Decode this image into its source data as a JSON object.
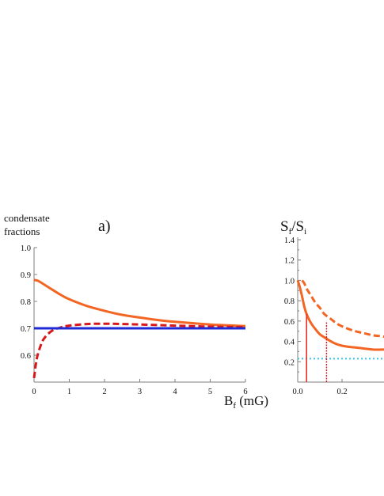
{
  "chart_data": [
    {
      "type": "line",
      "panel_label": "a)",
      "ylabel_lines": [
        "condensate",
        "fractions"
      ],
      "xlabel": {
        "main": "B",
        "sub": "f",
        "unit": " (mG)"
      },
      "xlim": [
        0,
        6
      ],
      "ylim": [
        0.5,
        1.0
      ],
      "x_ticks": [
        0,
        1,
        2,
        3,
        4,
        5,
        6
      ],
      "y_ticks": [
        0.6,
        0.7,
        0.8,
        0.9,
        1.0
      ],
      "x_tick_labels": [
        "0",
        "1",
        "2",
        "3",
        "4",
        "5",
        "6"
      ],
      "y_tick_labels": [
        "0.6",
        "0.7",
        "0.8",
        "0.9",
        "1.0"
      ],
      "series": [
        {
          "color": "#f26522",
          "style": "solid",
          "x": [
            0,
            0.1,
            0.25,
            0.5,
            0.75,
            1,
            1.5,
            2,
            2.5,
            3,
            3.5,
            4,
            4.5,
            5,
            5.5,
            6
          ],
          "y": [
            0.88,
            0.877,
            0.866,
            0.845,
            0.825,
            0.808,
            0.783,
            0.765,
            0.75,
            0.74,
            0.731,
            0.724,
            0.719,
            0.714,
            0.711,
            0.708
          ]
        },
        {
          "color": "#d7191c",
          "style": "dashed",
          "x": [
            0,
            0.05,
            0.1,
            0.2,
            0.3,
            0.5,
            0.75,
            1,
            1.5,
            2,
            2.5,
            3,
            3.5,
            4,
            4.5,
            5,
            5.5,
            6
          ],
          "y": [
            0.515,
            0.565,
            0.6,
            0.64,
            0.665,
            0.69,
            0.703,
            0.71,
            0.716,
            0.717,
            0.716,
            0.714,
            0.712,
            0.71,
            0.708,
            0.706,
            0.705,
            0.704
          ]
        },
        {
          "color": "#1f2bd6",
          "style": "solid",
          "x": [
            0,
            6
          ],
          "y": [
            0.7,
            0.7
          ]
        }
      ]
    },
    {
      "type": "line",
      "ylabel": {
        "main1": "S",
        "sub1": "f",
        "slash": "/",
        "main2": "S",
        "sub2": "i"
      },
      "xlim": [
        0,
        0.4
      ],
      "ylim": [
        0,
        1.4
      ],
      "x_ticks": [
        0,
        0.2
      ],
      "y_ticks": [
        0.2,
        0.4,
        0.6,
        0.8,
        1.0,
        1.2,
        1.4
      ],
      "x_tick_labels": [
        "0.0",
        "0.2"
      ],
      "y_tick_labels": [
        "0.2",
        "0.4",
        "0.6",
        "0.8",
        "1.0",
        "1.2",
        "1.4"
      ],
      "series": [
        {
          "color": "#f26522",
          "style": "solid",
          "x": [
            0,
            0.01,
            0.02,
            0.03,
            0.04,
            0.06,
            0.08,
            0.1,
            0.12,
            0.15,
            0.18,
            0.22,
            0.26,
            0.3,
            0.34,
            0.38,
            0.4
          ],
          "y": [
            1.0,
            0.93,
            0.84,
            0.74,
            0.67,
            0.58,
            0.52,
            0.47,
            0.44,
            0.4,
            0.37,
            0.35,
            0.34,
            0.33,
            0.32,
            0.32,
            0.32
          ]
        },
        {
          "color": "#f26522",
          "style": "dashed",
          "x": [
            0.02,
            0.03,
            0.04,
            0.06,
            0.08,
            0.1,
            0.12,
            0.15,
            0.18,
            0.22,
            0.26,
            0.3,
            0.34,
            0.38,
            0.4
          ],
          "y": [
            1.0,
            0.97,
            0.92,
            0.85,
            0.78,
            0.73,
            0.67,
            0.62,
            0.57,
            0.53,
            0.5,
            0.48,
            0.46,
            0.45,
            0.44
          ]
        },
        {
          "color": "#39c6e6",
          "style": "dotted",
          "x": [
            0,
            0.4
          ],
          "y": [
            0.23,
            0.23
          ]
        },
        {
          "color": "#e8322a",
          "style": "solid-vertical",
          "x": [
            0.04,
            0.04
          ],
          "y": [
            0,
            0.67
          ]
        },
        {
          "color": "#d7191c",
          "style": "dotted-vertical",
          "x": [
            0.13,
            0.13
          ],
          "y": [
            0,
            0.6
          ]
        }
      ]
    }
  ]
}
